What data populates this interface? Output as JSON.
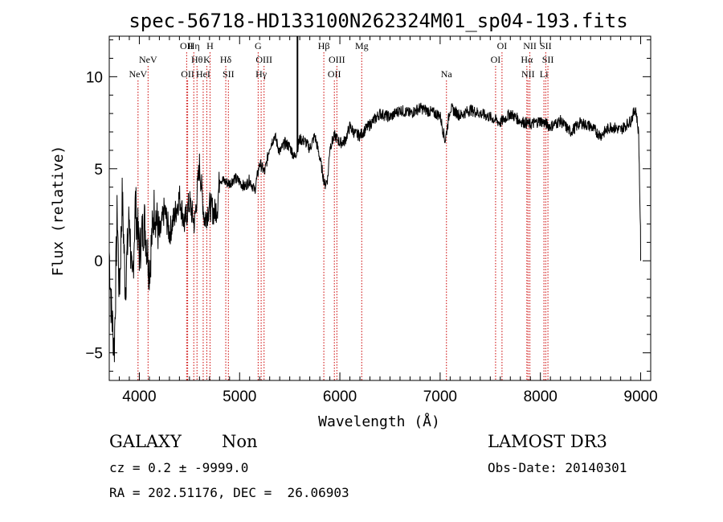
{
  "chart_data": {
    "type": "line",
    "title": "spec-56718-HD133100N262324M01_sp04-193.fits",
    "xlabel": "Wavelength (Å)",
    "ylabel": "Flux (relative)",
    "xlim": [
      3700,
      9100
    ],
    "ylim": [
      -6.5,
      12.2
    ],
    "xticks": [
      4000,
      5000,
      6000,
      7000,
      8000,
      9000
    ],
    "yticks": [
      -5,
      0,
      5,
      10
    ],
    "grid": false,
    "series": [
      {
        "name": "spectrum",
        "x": [
          3700,
          3720,
          3750,
          3780,
          3800,
          3830,
          3860,
          3900,
          3930,
          3960,
          4000,
          4050,
          4100,
          4150,
          4200,
          4250,
          4300,
          4350,
          4400,
          4450,
          4500,
          4550,
          4600,
          4650,
          4700,
          4750,
          4780,
          4800,
          4850,
          4900,
          4950,
          5000,
          5050,
          5100,
          5150,
          5200,
          5250,
          5300,
          5350,
          5400,
          5450,
          5500,
          5550,
          5600,
          5650,
          5700,
          5750,
          5800,
          5850,
          5880,
          5900,
          5950,
          6000,
          6050,
          6100,
          6150,
          6200,
          6300,
          6400,
          6500,
          6600,
          6700,
          6800,
          6900,
          7000,
          7050,
          7100,
          7200,
          7300,
          7400,
          7500,
          7600,
          7700,
          7800,
          7900,
          8000,
          8100,
          8200,
          8300,
          8400,
          8500,
          8600,
          8700,
          8800,
          8900,
          8950,
          8980,
          9000
        ],
        "values": [
          0.5,
          -2.5,
          -4.8,
          2.8,
          -2.0,
          3.5,
          -1.5,
          2.5,
          -1.8,
          3.2,
          0.5,
          2.2,
          -0.5,
          3.0,
          1.2,
          2.8,
          1.5,
          2.4,
          3.5,
          2.0,
          3.2,
          2.0,
          5.2,
          2.2,
          3.0,
          2.6,
          3.0,
          4.5,
          4.3,
          4.2,
          4.5,
          4.3,
          4.0,
          4.4,
          3.8,
          5.3,
          4.8,
          6.2,
          6.8,
          5.9,
          6.4,
          6.2,
          5.6,
          6.6,
          6.5,
          6.1,
          6.8,
          5.6,
          4.1,
          4.5,
          6.2,
          6.8,
          6.4,
          6.5,
          7.3,
          6.9,
          6.8,
          7.4,
          8.0,
          7.8,
          8.2,
          8.0,
          8.3,
          8.1,
          7.9,
          6.5,
          8.3,
          7.9,
          8.2,
          8.0,
          7.8,
          7.5,
          8.0,
          7.6,
          7.4,
          7.6,
          7.3,
          7.6,
          7.0,
          7.5,
          7.3,
          6.8,
          7.3,
          7.1,
          7.6,
          8.3,
          6.9,
          1.0
        ]
      }
    ],
    "lines": [
      {
        "label": "NeV",
        "wave": 3987,
        "row": 3
      },
      {
        "label": "NeV",
        "wave": 4087,
        "row": 2
      },
      {
        "label": "OII",
        "wave": 4472,
        "row": 1
      },
      {
        "label": "OII",
        "wave": 4482,
        "row": 3
      },
      {
        "label": "Hη",
        "wave": 4543,
        "row": 1
      },
      {
        "label": "Hθ",
        "wave": 4575,
        "row": 2
      },
      {
        "label": "HeI",
        "wave": 4637,
        "row": 3
      },
      {
        "label": "H",
        "wave": 4705,
        "row": 1
      },
      {
        "label": "K",
        "wave": 4673,
        "row": 2
      },
      {
        "label": "Hδ",
        "wave": 4862,
        "row": 2
      },
      {
        "label": "SII",
        "wave": 4888,
        "row": 3
      },
      {
        "label": "G",
        "wave": 5185,
        "row": 1
      },
      {
        "label": "OIII",
        "wave": 5244,
        "row": 2
      },
      {
        "label": "Hγ",
        "wave": 5215,
        "row": 3
      },
      {
        "label": "Hβ",
        "wave": 5840,
        "row": 1
      },
      {
        "label": "OIII",
        "wave": 5970,
        "row": 2
      },
      {
        "label": "OII",
        "wave": 5945,
        "row": 3
      },
      {
        "label": "Mg",
        "wave": 6218,
        "row": 1
      },
      {
        "label": "Na",
        "wave": 7063,
        "row": 3
      },
      {
        "label": "OI",
        "wave": 7617,
        "row": 1
      },
      {
        "label": "OI",
        "wave": 7553,
        "row": 2
      },
      {
        "label": "NII",
        "wave": 7895,
        "row": 1
      },
      {
        "label": "Hα",
        "wave": 7865,
        "row": 2
      },
      {
        "label": "NII",
        "wave": 7877,
        "row": 3
      },
      {
        "label": "SII",
        "wave": 8053,
        "row": 1
      },
      {
        "label": "SII",
        "wave": 8075,
        "row": 2
      },
      {
        "label": "Li",
        "wave": 8035,
        "row": 3
      }
    ],
    "colors": {
      "spectrum": "#000000",
      "lines": "#cc0000",
      "marker": "#000000"
    },
    "marker_wave": 5577
  },
  "info": {
    "class": "GALAXY",
    "subclass": "Non",
    "survey": "LAMOST DR3",
    "cz": "cz = 0.2 ± -9999.0",
    "obs_date": "Obs-Date: 20140301",
    "coords": "RA = 202.51176, DEC =  26.06903"
  }
}
